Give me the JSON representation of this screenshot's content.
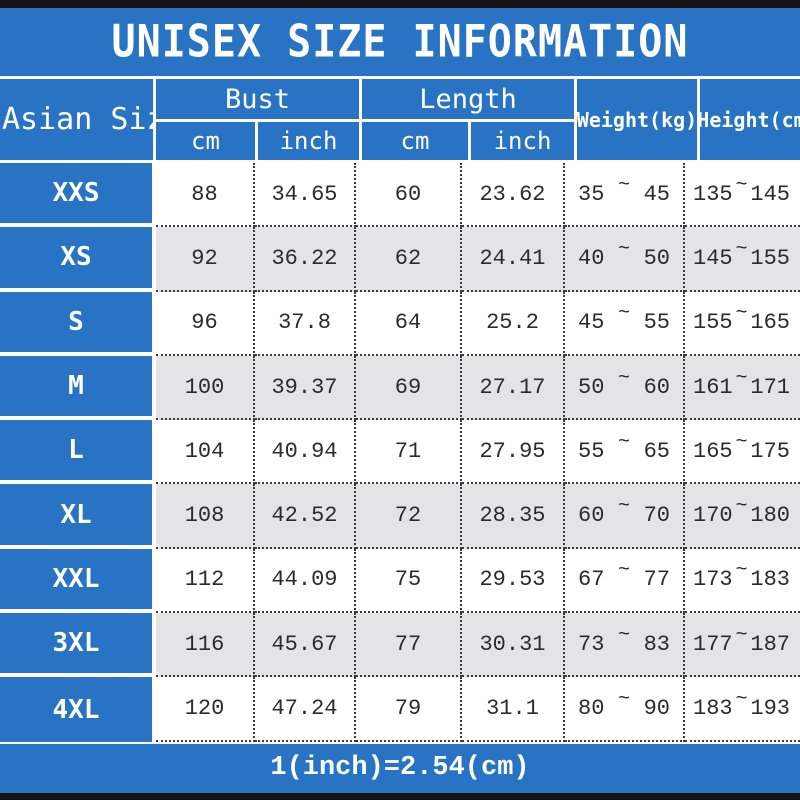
{
  "title": "UNISEX SIZE INFORMATION",
  "footer": {
    "conversion_note": "1(inch)=2.54(cm)"
  },
  "colors": {
    "accent_blue": "#2873C3",
    "alt_row_gray": "#E4E3E5",
    "bar_black": "#141414",
    "data_text": "#2B2B2B",
    "header_text": "#FFFFFF"
  },
  "table": {
    "corner_header": "Asian Size",
    "bust_group_label": "Bust",
    "length_group_label": "Length",
    "weight_header": "Weight(kg)",
    "height_header": "Height(cm)",
    "cm_label": "cm",
    "inch_label": "inch",
    "range_separator": "~",
    "rows": [
      {
        "size": "XXS",
        "bust_cm": "88",
        "bust_inch": "34.65",
        "length_cm": "60",
        "length_inch": "23.62",
        "weight_min": "35",
        "weight_max": "45",
        "height_min": "135",
        "height_max": "145"
      },
      {
        "size": "XS",
        "bust_cm": "92",
        "bust_inch": "36.22",
        "length_cm": "62",
        "length_inch": "24.41",
        "weight_min": "40",
        "weight_max": "50",
        "height_min": "145",
        "height_max": "155"
      },
      {
        "size": "S",
        "bust_cm": "96",
        "bust_inch": "37.8",
        "length_cm": "64",
        "length_inch": "25.2",
        "weight_min": "45",
        "weight_max": "55",
        "height_min": "155",
        "height_max": "165"
      },
      {
        "size": "M",
        "bust_cm": "100",
        "bust_inch": "39.37",
        "length_cm": "69",
        "length_inch": "27.17",
        "weight_min": "50",
        "weight_max": "60",
        "height_min": "161",
        "height_max": "171"
      },
      {
        "size": "L",
        "bust_cm": "104",
        "bust_inch": "40.94",
        "length_cm": "71",
        "length_inch": "27.95",
        "weight_min": "55",
        "weight_max": "65",
        "height_min": "165",
        "height_max": "175"
      },
      {
        "size": "XL",
        "bust_cm": "108",
        "bust_inch": "42.52",
        "length_cm": "72",
        "length_inch": "28.35",
        "weight_min": "60",
        "weight_max": "70",
        "height_min": "170",
        "height_max": "180"
      },
      {
        "size": "XXL",
        "bust_cm": "112",
        "bust_inch": "44.09",
        "length_cm": "75",
        "length_inch": "29.53",
        "weight_min": "67",
        "weight_max": "77",
        "height_min": "173",
        "height_max": "183"
      },
      {
        "size": "3XL",
        "bust_cm": "116",
        "bust_inch": "45.67",
        "length_cm": "77",
        "length_inch": "30.31",
        "weight_min": "73",
        "weight_max": "83",
        "height_min": "177",
        "height_max": "187"
      },
      {
        "size": "4XL",
        "bust_cm": "120",
        "bust_inch": "47.24",
        "length_cm": "79",
        "length_inch": "31.1",
        "weight_min": "80",
        "weight_max": "90",
        "height_min": "183",
        "height_max": "193"
      }
    ]
  },
  "chart_data": {
    "type": "table",
    "title": "UNISEX SIZE INFORMATION",
    "columns": [
      "Asian Size",
      "Bust cm",
      "Bust inch",
      "Length cm",
      "Length inch",
      "Weight(kg)",
      "Height(cm)"
    ],
    "rows": [
      [
        "XXS",
        88,
        34.65,
        60,
        23.62,
        "35~45",
        "135~145"
      ],
      [
        "XS",
        92,
        36.22,
        62,
        24.41,
        "40~50",
        "145~155"
      ],
      [
        "S",
        96,
        37.8,
        64,
        25.2,
        "45~55",
        "155~165"
      ],
      [
        "M",
        100,
        39.37,
        69,
        27.17,
        "50~60",
        "161~171"
      ],
      [
        "L",
        104,
        40.94,
        71,
        27.95,
        "55~65",
        "165~175"
      ],
      [
        "XL",
        108,
        42.52,
        72,
        28.35,
        "60~70",
        "170~180"
      ],
      [
        "XXL",
        112,
        44.09,
        75,
        29.53,
        "67~77",
        "173~183"
      ],
      [
        "3XL",
        116,
        45.67,
        77,
        30.31,
        "73~83",
        "177~187"
      ],
      [
        "4XL",
        120,
        47.24,
        79,
        31.1,
        "80~90",
        "183~193"
      ]
    ],
    "footnote": "1(inch)=2.54(cm)"
  }
}
